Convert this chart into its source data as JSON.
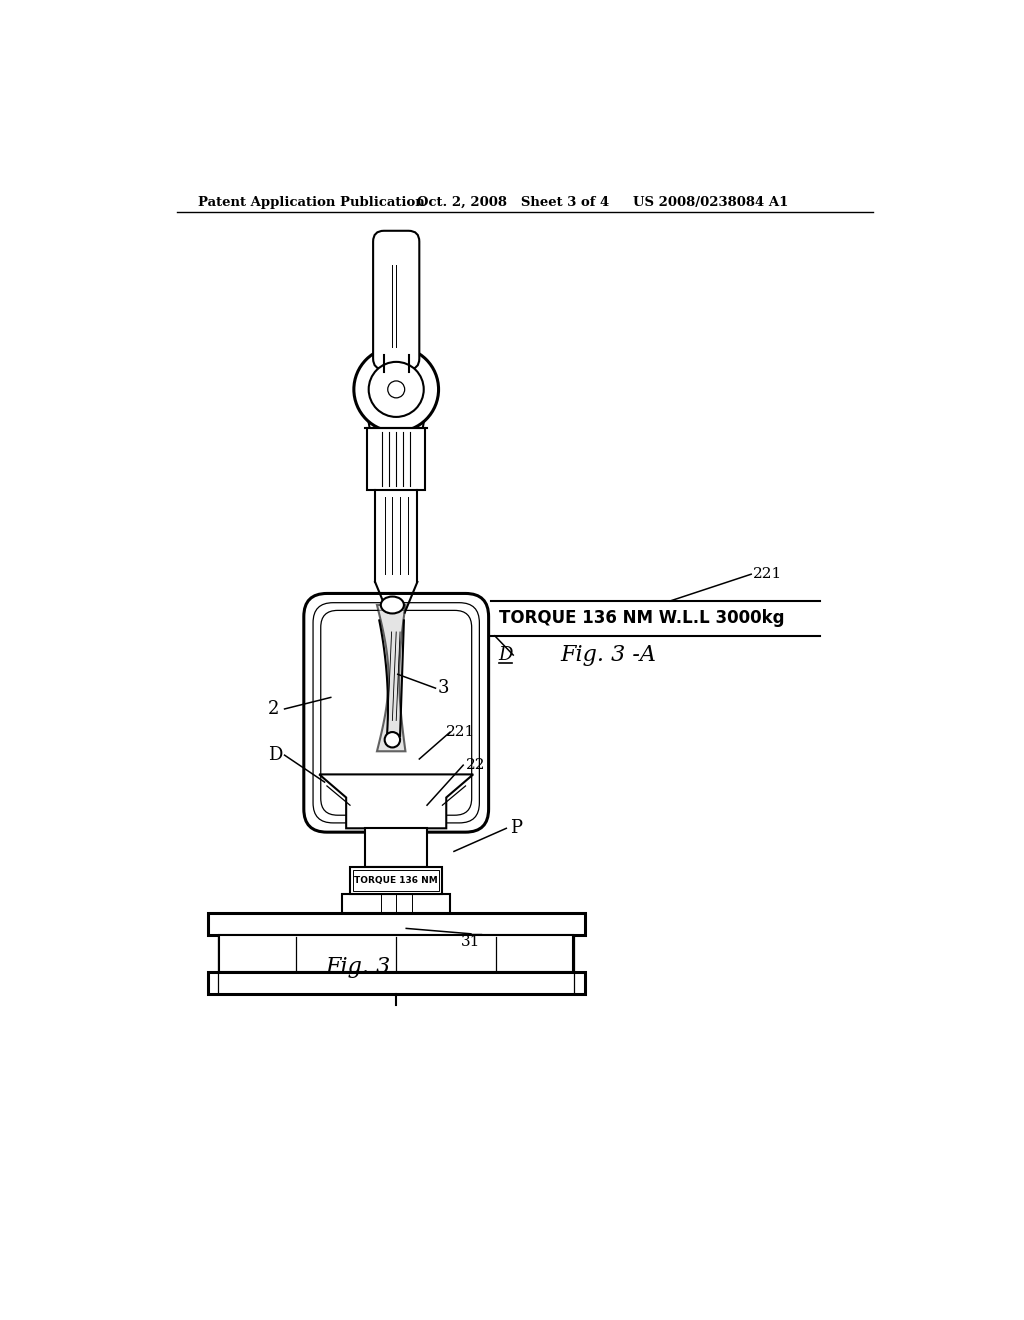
{
  "bg_color": "#ffffff",
  "header_text1": "Patent Application Publication",
  "header_text2": "Oct. 2, 2008   Sheet 3 of 4",
  "header_text3": "US 2008/0238084 A1",
  "fig3_label": "Fig. 3",
  "fig3a_label": "Fig. 3 -A",
  "label_2": "2",
  "label_3": "3",
  "label_D_left": "D",
  "label_D_right": "D",
  "label_22": "22",
  "label_221_top": "221",
  "label_221_bottom": "221",
  "label_31": "31",
  "label_P": "P",
  "torque_text_box": "TORQUE 136 NM W.L.L 3000kg",
  "torque_text_label": "TORQUE 136 NM"
}
